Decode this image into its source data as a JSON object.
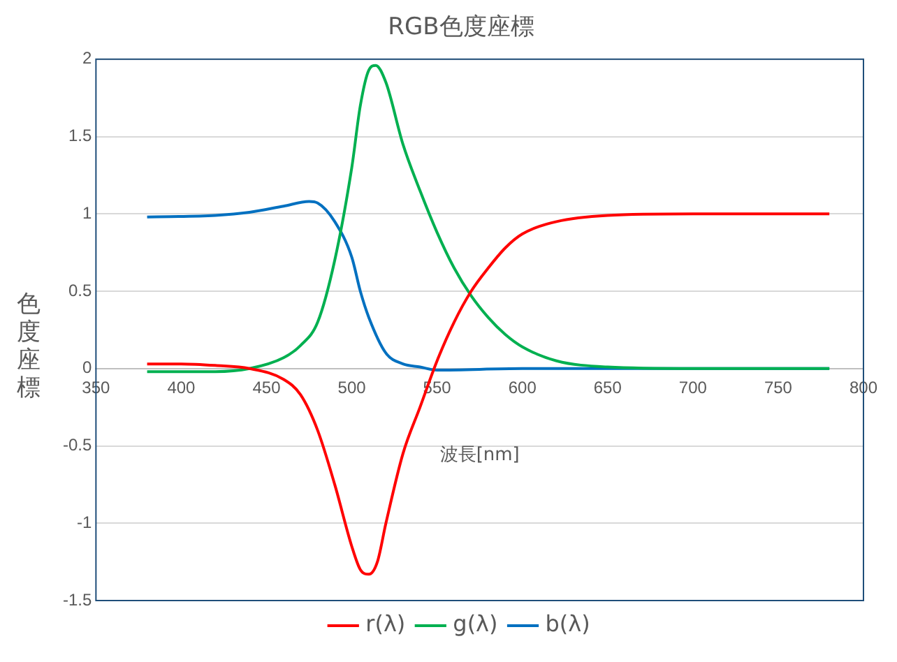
{
  "chart_data": {
    "type": "line",
    "title": "RGB色度座標",
    "xlabel": "波長[nm]",
    "ylabel": "色度座標",
    "xlim": [
      350,
      800
    ],
    "xticks": [
      350,
      400,
      450,
      500,
      550,
      600,
      650,
      700,
      750,
      800
    ],
    "ylim": [
      -1.5,
      2
    ],
    "yticks": [
      -1.5,
      -1,
      -0.5,
      0,
      0.5,
      1,
      1.5,
      2
    ],
    "grid": "y",
    "legend": "bottom",
    "marker": "none",
    "line_style": "solid",
    "series": [
      {
        "name": "r(λ)",
        "color": "#ff0000",
        "x": [
          380,
          400,
          420,
          440,
          460,
          470,
          480,
          490,
          500,
          505,
          510,
          515,
          520,
          530,
          540,
          550,
          560,
          570,
          580,
          590,
          600,
          620,
          650,
          700,
          780
        ],
        "values": [
          0.03,
          0.03,
          0.02,
          0,
          -0.07,
          -0.17,
          -0.4,
          -0.75,
          -1.15,
          -1.3,
          -1.33,
          -1.25,
          -1.0,
          -0.55,
          -0.25,
          0.05,
          0.3,
          0.5,
          0.65,
          0.78,
          0.87,
          0.95,
          0.99,
          1.0,
          1.0
        ]
      },
      {
        "name": "g(λ)",
        "color": "#00b050",
        "x": [
          380,
          420,
          440,
          460,
          470,
          480,
          490,
          500,
          505,
          510,
          514,
          520,
          530,
          540,
          550,
          560,
          570,
          580,
          590,
          600,
          620,
          650,
          700,
          780
        ],
        "values": [
          -0.02,
          -0.02,
          0,
          0.07,
          0.15,
          0.3,
          0.7,
          1.3,
          1.7,
          1.93,
          1.96,
          1.85,
          1.45,
          1.15,
          0.88,
          0.65,
          0.47,
          0.33,
          0.22,
          0.14,
          0.05,
          0.01,
          0,
          0
        ]
      },
      {
        "name": "b(λ)",
        "color": "#0070c0",
        "x": [
          380,
          420,
          440,
          460,
          475,
          480,
          490,
          500,
          505,
          510,
          520,
          530,
          540,
          550,
          600,
          780
        ],
        "values": [
          0.98,
          0.99,
          1.01,
          1.05,
          1.08,
          1.07,
          0.95,
          0.72,
          0.5,
          0.33,
          0.1,
          0.03,
          0.01,
          -0.01,
          0,
          0
        ]
      }
    ]
  }
}
